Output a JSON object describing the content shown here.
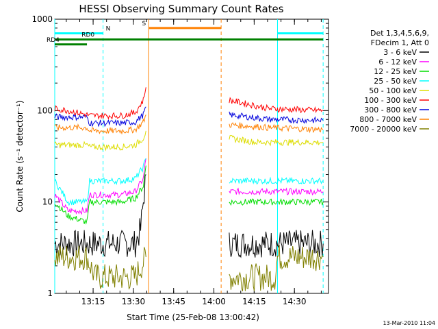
{
  "chart_data": {
    "type": "line",
    "title": "HESSI Observing Summary Count Rates",
    "xlabel": "Start Time (25-Feb-08 13:00:42)",
    "ylabel": "Count Rate (s⁻¹ detector⁻¹)",
    "yscale": "log",
    "ylim": [
      1,
      1000
    ],
    "xlim_minutes": [
      0,
      102
    ],
    "x_tick_labels": [
      "13:15",
      "13:30",
      "13:45",
      "14:00",
      "14:15",
      "14:30"
    ],
    "x_tick_minutes": [
      14.3,
      29.3,
      44.3,
      59.3,
      74.3,
      89.3
    ],
    "y_ticks": [
      1,
      10,
      100,
      1000
    ],
    "y_tick_labels": [
      "1",
      "10",
      "100",
      "1000"
    ],
    "legend": {
      "placement": "right",
      "header": [
        "Det 1,3,4,5,6,9,",
        "FDecim 1, Att 0"
      ],
      "entries": [
        {
          "label": "3 - 6 keV",
          "color": "#000000"
        },
        {
          "label": "6 - 12 keV",
          "color": "#ff00ff"
        },
        {
          "label": "12 - 25 keV",
          "color": "#00dd00"
        },
        {
          "label": "25 - 50 keV",
          "color": "#00ffff"
        },
        {
          "label": "50 - 100 keV",
          "color": "#dddd00"
        },
        {
          "label": "100 - 300 keV",
          "color": "#ff0000"
        },
        {
          "label": "300 - 800 keV",
          "color": "#0000dd"
        },
        {
          "label": "800 - 7000 keV",
          "color": "#ff8000"
        },
        {
          "label": "7000 - 20000 keV",
          "color": "#808000"
        }
      ]
    },
    "flags": [
      {
        "label": "N",
        "color": "#00ffff",
        "segments": [
          [
            0,
            18
          ],
          [
            83,
            100
          ]
        ],
        "level": 700
      },
      {
        "label": "S",
        "color": "#ff8000",
        "segments": [
          [
            35,
            62
          ]
        ],
        "level": 800
      },
      {
        "label": "RD0",
        "color": "#008000",
        "segments": [
          [
            0,
            100
          ]
        ],
        "level": 600
      },
      {
        "label": "RD4",
        "color": "#008000",
        "segments": [
          [
            0,
            12
          ]
        ],
        "level": 530
      }
    ],
    "vertical_markers": [
      {
        "minute": 0,
        "color": "#00ffff",
        "style": "solid"
      },
      {
        "minute": 18,
        "color": "#00ffff",
        "style": "dashed"
      },
      {
        "minute": 35,
        "color": "#ff8000",
        "style": "solid"
      },
      {
        "minute": 62,
        "color": "#ff8000",
        "style": "dashed"
      },
      {
        "minute": 83,
        "color": "#00ffff",
        "style": "solid"
      },
      {
        "minute": 100,
        "color": "#00ffff",
        "style": "dashed"
      }
    ],
    "gap_minutes": [
      35,
      65
    ],
    "series": [
      {
        "color": "#000000",
        "segments": [
          {
            "points": [
              [
                0,
                3.5
              ],
              [
                12,
                3.5
              ],
              [
                13,
                3.5
              ],
              [
                30,
                3.5
              ],
              [
                32,
                5
              ],
              [
                33,
                10
              ],
              [
                34,
                20
              ]
            ]
          },
          {
            "points": [
              [
                65,
                3.5
              ],
              [
                100,
                3.5
              ]
            ]
          }
        ]
      },
      {
        "color": "#808000",
        "segments": [
          {
            "points": [
              [
                0,
                2.5
              ],
              [
                12,
                2.5
              ],
              [
                15,
                1.5
              ],
              [
                30,
                1.5
              ],
              [
                34,
                2.5
              ]
            ]
          },
          {
            "points": [
              [
                65,
                1.5
              ],
              [
                82,
                1.5
              ],
              [
                83,
                2.5
              ],
              [
                100,
                2.5
              ]
            ]
          }
        ]
      },
      {
        "color": "#ff00ff",
        "segments": [
          {
            "points": [
              [
                0,
                12
              ],
              [
                5,
                8
              ],
              [
                12,
                8
              ],
              [
                13,
                12
              ],
              [
                25,
                12
              ],
              [
                30,
                13
              ],
              [
                33,
                18
              ],
              [
                34,
                30
              ]
            ]
          },
          {
            "points": [
              [
                65,
                13
              ],
              [
                100,
                13
              ]
            ]
          }
        ]
      },
      {
        "color": "#00dd00",
        "segments": [
          {
            "points": [
              [
                0,
                10
              ],
              [
                5,
                7
              ],
              [
                12,
                6
              ],
              [
                13,
                10
              ],
              [
                25,
                10
              ],
              [
                30,
                11
              ],
              [
                33,
                15
              ],
              [
                34,
                25
              ]
            ]
          },
          {
            "points": [
              [
                65,
                10
              ],
              [
                100,
                10
              ]
            ]
          }
        ]
      },
      {
        "color": "#00ffff",
        "segments": [
          {
            "points": [
              [
                0,
                17
              ],
              [
                5,
                10
              ],
              [
                12,
                10
              ],
              [
                13,
                17
              ],
              [
                25,
                17
              ],
              [
                30,
                18
              ],
              [
                33,
                24
              ],
              [
                34,
                30
              ]
            ]
          },
          {
            "points": [
              [
                65,
                17
              ],
              [
                100,
                17
              ]
            ]
          }
        ]
      },
      {
        "color": "#dddd00",
        "segments": [
          {
            "points": [
              [
                0,
                42
              ],
              [
                12,
                42
              ],
              [
                13,
                40
              ],
              [
                25,
                40
              ],
              [
                30,
                42
              ],
              [
                33,
                50
              ],
              [
                34,
                60
              ]
            ]
          },
          {
            "points": [
              [
                65,
                50
              ],
              [
                75,
                45
              ],
              [
                100,
                45
              ]
            ]
          }
        ]
      },
      {
        "color": "#ff8000",
        "segments": [
          {
            "points": [
              [
                0,
                65
              ],
              [
                12,
                65
              ],
              [
                13,
                60
              ],
              [
                25,
                60
              ],
              [
                30,
                62
              ],
              [
                33,
                75
              ],
              [
                34,
                90
              ]
            ]
          },
          {
            "points": [
              [
                65,
                70
              ],
              [
                80,
                65
              ],
              [
                100,
                62
              ]
            ]
          }
        ]
      },
      {
        "color": "#0000dd",
        "segments": [
          {
            "points": [
              [
                0,
                85
              ],
              [
                12,
                85
              ],
              [
                13,
                73
              ],
              [
                25,
                73
              ],
              [
                30,
                75
              ],
              [
                33,
                90
              ],
              [
                34,
                110
              ]
            ]
          },
          {
            "points": [
              [
                65,
                90
              ],
              [
                80,
                80
              ],
              [
                100,
                78
              ]
            ]
          }
        ]
      },
      {
        "color": "#ff0000",
        "segments": [
          {
            "points": [
              [
                0,
                105
              ],
              [
                5,
                100
              ],
              [
                12,
                90
              ],
              [
                13,
                88
              ],
              [
                25,
                88
              ],
              [
                30,
                95
              ],
              [
                33,
                130
              ],
              [
                34,
                180
              ]
            ]
          },
          {
            "points": [
              [
                65,
                130
              ],
              [
                80,
                105
              ],
              [
                100,
                100
              ]
            ]
          }
        ]
      }
    ]
  },
  "footer": {
    "timestamp": "13-Mar-2010 11:04"
  }
}
